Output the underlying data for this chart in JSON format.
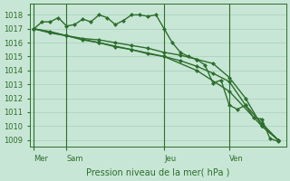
{
  "background_color": "#c8e6d5",
  "grid_color": "#a0c8b8",
  "line_color": "#2d6e2d",
  "marker_size": 2.5,
  "line_width": 1.0,
  "ylim": [
    1008.5,
    1018.8
  ],
  "yticks": [
    1009,
    1010,
    1011,
    1012,
    1013,
    1014,
    1015,
    1016,
    1017,
    1018
  ],
  "xlabel": "Pression niveau de la mer( hPa )",
  "xlabel_fontsize": 7,
  "tick_fontsize": 6,
  "xtick_labels": [
    "Mer",
    "Sam",
    "Jeu",
    "Ven"
  ],
  "xtick_positions": [
    0,
    8,
    32,
    48
  ],
  "vline_positions": [
    0,
    8,
    32,
    48
  ],
  "xlim": [
    -1,
    62
  ],
  "series": [
    {
      "x": [
        0,
        2,
        4,
        6,
        8,
        10,
        12,
        14,
        16,
        18,
        20,
        22,
        24,
        26,
        28,
        30,
        32,
        34,
        36,
        38,
        40,
        42,
        44,
        46,
        48,
        50,
        52,
        54,
        56,
        58,
        60
      ],
      "y": [
        1017.0,
        1017.5,
        1017.5,
        1017.8,
        1017.2,
        1017.3,
        1017.7,
        1017.5,
        1018.0,
        1017.8,
        1017.3,
        1017.6,
        1018.0,
        1018.0,
        1017.9,
        1018.0,
        1017.0,
        1016.0,
        1015.3,
        1015.0,
        1014.8,
        1014.4,
        1013.1,
        1013.3,
        1011.5,
        1011.2,
        1011.5,
        1010.6,
        1010.5,
        1009.1,
        1008.9
      ]
    },
    {
      "x": [
        0,
        4,
        8,
        12,
        16,
        20,
        24,
        28,
        32,
        36,
        40,
        44,
        48,
        52,
        56,
        60
      ],
      "y": [
        1017.0,
        1016.7,
        1016.5,
        1016.3,
        1016.2,
        1016.0,
        1015.8,
        1015.6,
        1015.3,
        1015.1,
        1014.8,
        1014.5,
        1013.5,
        1012.0,
        1010.0,
        1009.0
      ]
    },
    {
      "x": [
        0,
        4,
        8,
        12,
        16,
        20,
        24,
        28,
        32,
        36,
        40,
        44,
        48,
        52,
        56,
        60
      ],
      "y": [
        1017.0,
        1016.8,
        1016.5,
        1016.2,
        1016.0,
        1015.7,
        1015.5,
        1015.2,
        1015.0,
        1014.7,
        1014.3,
        1013.8,
        1013.2,
        1011.5,
        1010.2,
        1009.0
      ]
    },
    {
      "x": [
        0,
        8,
        16,
        24,
        32,
        40,
        48,
        56,
        60
      ],
      "y": [
        1017.0,
        1016.5,
        1016.0,
        1015.5,
        1015.0,
        1014.0,
        1012.5,
        1010.0,
        1009.0
      ]
    }
  ]
}
